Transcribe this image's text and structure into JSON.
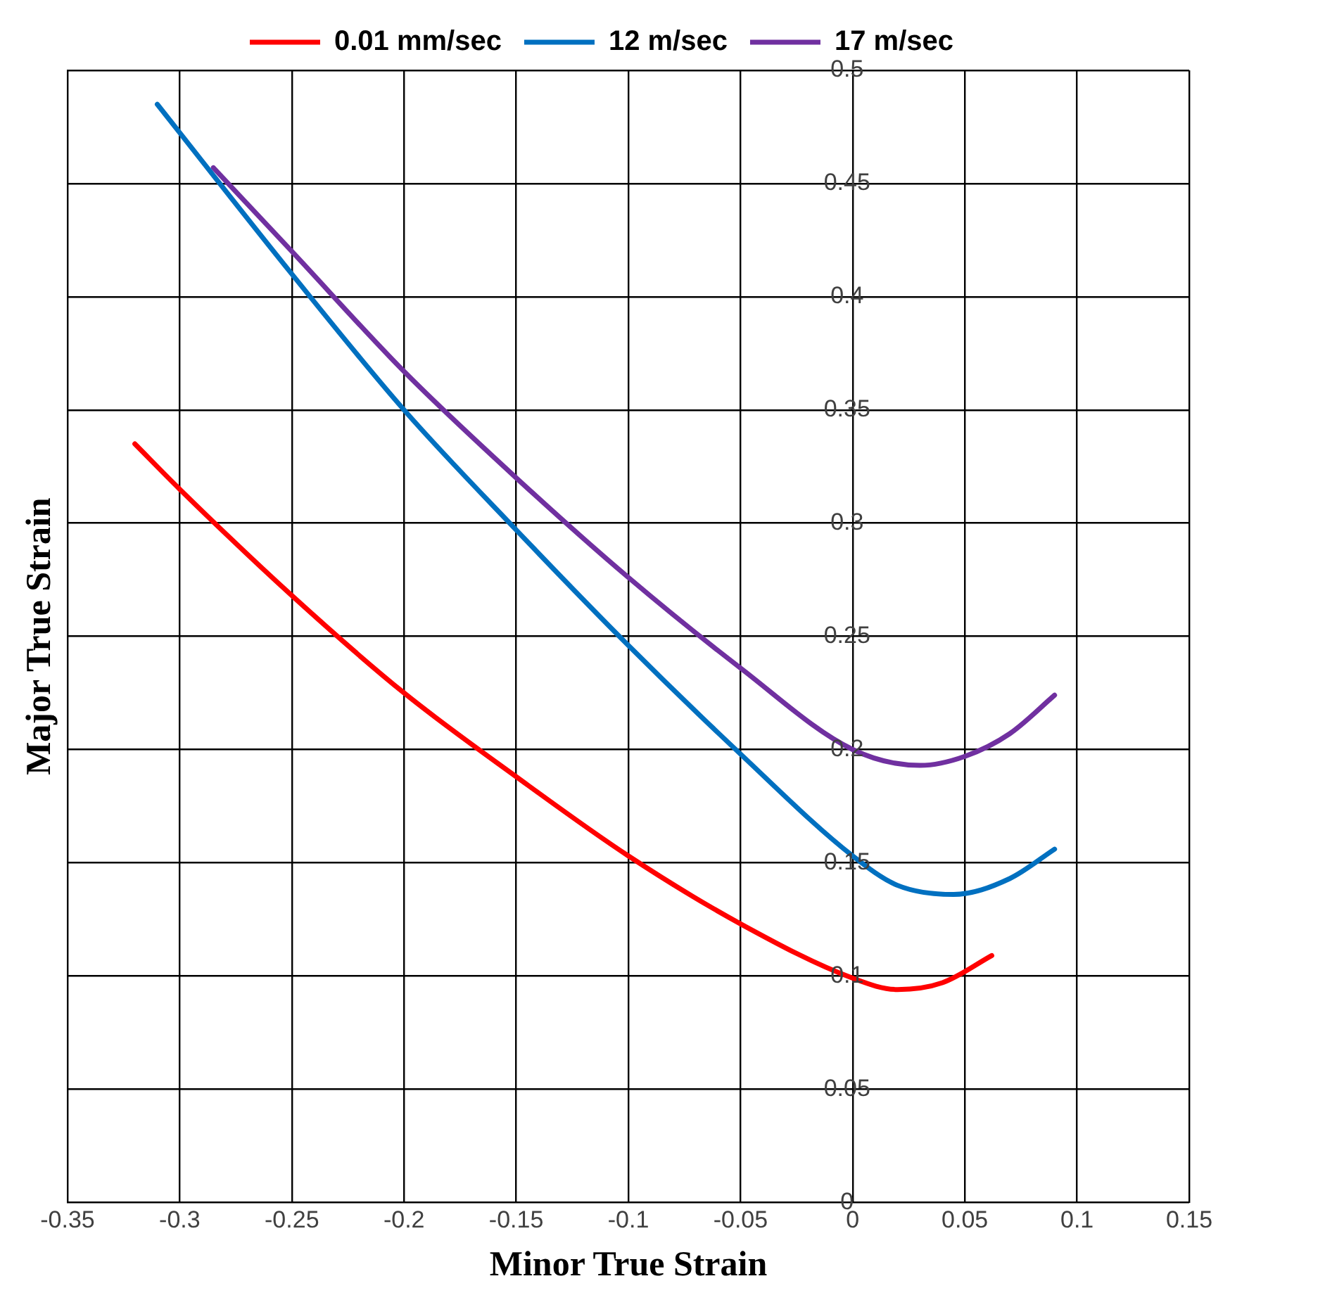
{
  "chart_data": {
    "type": "line",
    "xlabel": "Minor True Strain",
    "ylabel": "Major True Strain",
    "xlim": [
      -0.35,
      0.15
    ],
    "xticks": [
      -0.35,
      -0.3,
      -0.25,
      -0.2,
      -0.15,
      -0.1,
      -0.05,
      0,
      0.05,
      0.1,
      0.15
    ],
    "ylim": [
      0,
      0.5
    ],
    "yticks": [
      0,
      0.05,
      0.1,
      0.15,
      0.2,
      0.25,
      0.3,
      0.35,
      0.4,
      0.45,
      0.5
    ],
    "grid": true,
    "legend": "top",
    "marker": "none",
    "line_style": "solid",
    "series": [
      {
        "name": "0.01 mm/sec",
        "color": "#ff0000",
        "x": [
          -0.32,
          -0.3,
          -0.25,
          -0.2,
          -0.15,
          -0.1,
          -0.05,
          0,
          0.02,
          0.04,
          0.062
        ],
        "values": [
          0.335,
          0.315,
          0.268,
          0.225,
          0.188,
          0.153,
          0.123,
          0.099,
          0.094,
          0.097,
          0.109
        ]
      },
      {
        "name": "12 m/sec",
        "color": "#0070c0",
        "x": [
          -0.31,
          -0.25,
          -0.2,
          -0.15,
          -0.1,
          -0.05,
          0,
          0.02,
          0.045,
          0.07,
          0.09
        ],
        "values": [
          0.485,
          0.41,
          0.35,
          0.297,
          0.246,
          0.198,
          0.153,
          0.14,
          0.136,
          0.143,
          0.156
        ]
      },
      {
        "name": "17 m/sec",
        "color": "#7030a0",
        "x": [
          -0.285,
          -0.25,
          -0.2,
          -0.15,
          -0.1,
          -0.05,
          0,
          0.03,
          0.05,
          0.07,
          0.09
        ],
        "values": [
          0.457,
          0.42,
          0.367,
          0.32,
          0.276,
          0.236,
          0.2,
          0.193,
          0.197,
          0.207,
          0.224
        ]
      }
    ]
  }
}
